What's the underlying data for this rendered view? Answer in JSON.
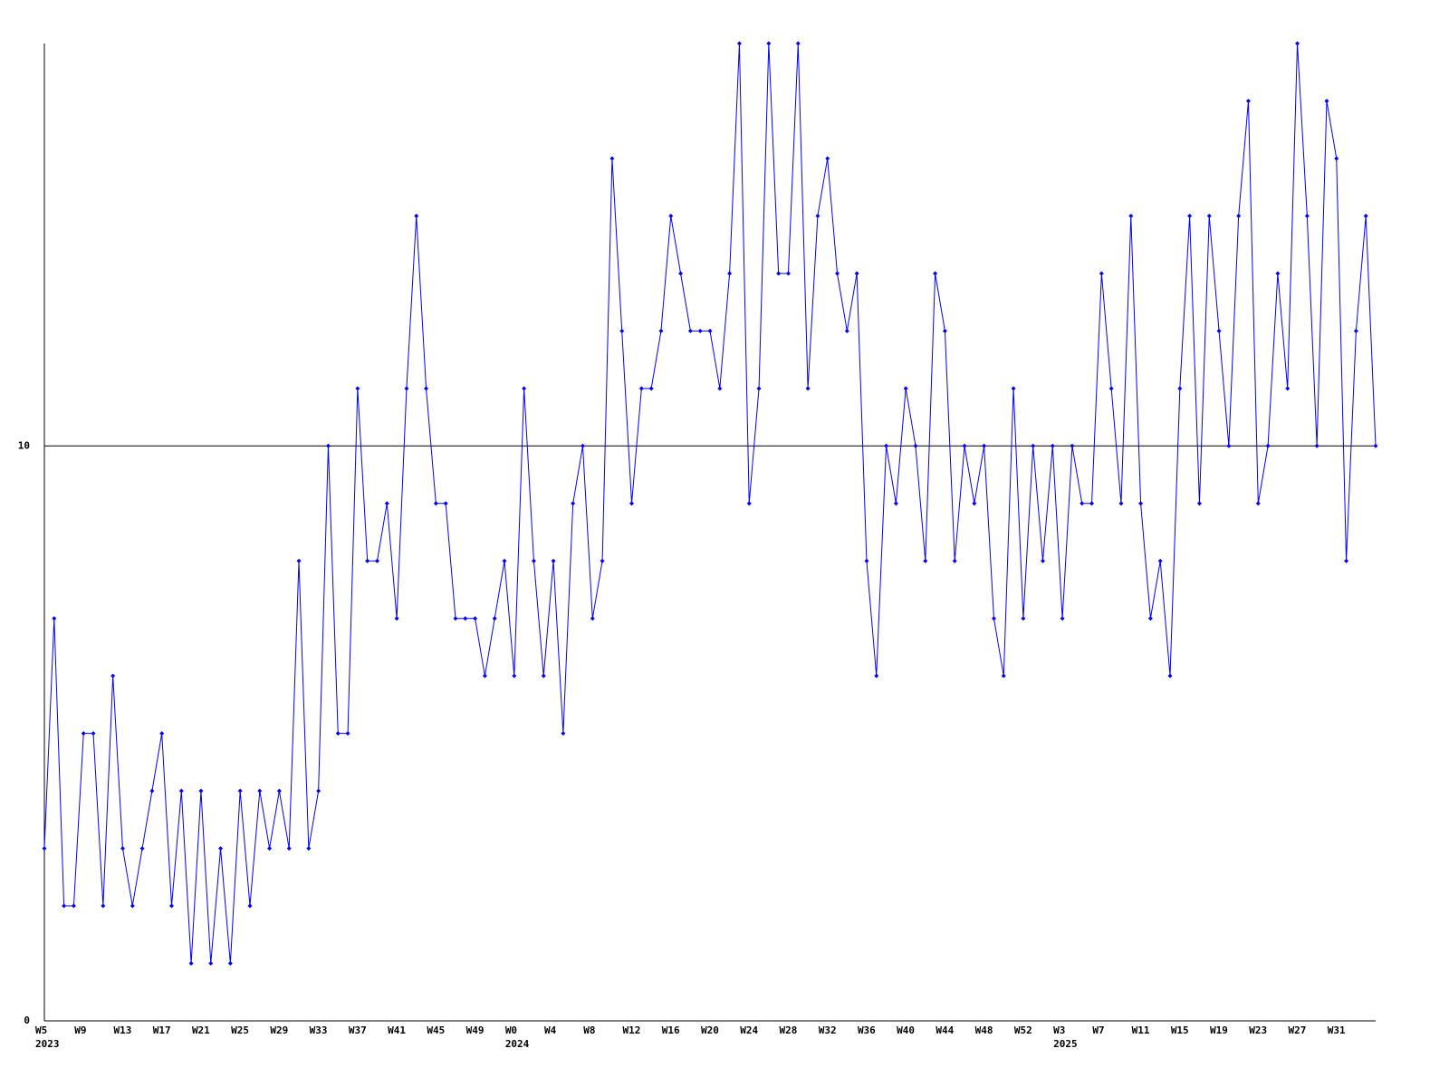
{
  "chart_data": {
    "type": "line",
    "categories": [
      "W5",
      null,
      null,
      null,
      "W9",
      null,
      null,
      null,
      "W13",
      null,
      null,
      null,
      "W17",
      null,
      null,
      null,
      "W21",
      null,
      null,
      null,
      "W25",
      null,
      null,
      null,
      "W29",
      null,
      null,
      null,
      "W33",
      null,
      null,
      null,
      "W37",
      null,
      null,
      null,
      "W41",
      null,
      null,
      null,
      "W45",
      null,
      null,
      null,
      "W49",
      null,
      null,
      null,
      "W0",
      null,
      null,
      null,
      "W4",
      null,
      null,
      null,
      "W8",
      null,
      null,
      null,
      "W12",
      null,
      null,
      null,
      "W16",
      null,
      null,
      null,
      "W20",
      null,
      null,
      null,
      "W24",
      null,
      null,
      null,
      "W28",
      null,
      null,
      null,
      "W32",
      null,
      null,
      null,
      "W36",
      null,
      null,
      null,
      "W40",
      null,
      null,
      null,
      "W44",
      null,
      null,
      null,
      "W48",
      null,
      null,
      null,
      "W52",
      null,
      null,
      null,
      "W3",
      null,
      null,
      null,
      "W7",
      null,
      null,
      null,
      "W11",
      null,
      null,
      null,
      "W15",
      null,
      null,
      null,
      "W19",
      null,
      null,
      null,
      "W23",
      null,
      null,
      null,
      "W27",
      null,
      null,
      null,
      "W31",
      null,
      null,
      null,
      null
    ],
    "years": [
      "2023",
      null,
      null,
      null,
      null,
      null,
      null,
      null,
      null,
      null,
      null,
      null,
      null,
      null,
      null,
      null,
      null,
      null,
      null,
      null,
      null,
      null,
      null,
      null,
      null,
      null,
      null,
      null,
      null,
      null,
      null,
      null,
      null,
      null,
      null,
      null,
      null,
      null,
      null,
      null,
      null,
      null,
      null,
      null,
      null,
      null,
      null,
      null,
      "2024",
      null,
      null,
      null,
      null,
      null,
      null,
      null,
      null,
      null,
      null,
      null,
      null,
      null,
      null,
      null,
      null,
      null,
      null,
      null,
      null,
      null,
      null,
      null,
      null,
      null,
      null,
      null,
      null,
      null,
      null,
      null,
      null,
      null,
      null,
      null,
      null,
      null,
      null,
      null,
      null,
      null,
      null,
      null,
      null,
      null,
      null,
      null,
      null,
      null,
      null,
      null,
      null,
      null,
      null,
      null,
      "2025",
      null,
      null,
      null,
      null,
      null,
      null,
      null,
      null,
      null,
      null,
      null,
      null,
      null,
      null,
      null,
      null,
      null,
      null,
      null,
      null,
      null,
      null,
      null,
      null,
      null,
      null,
      null,
      null,
      null,
      null,
      null,
      null
    ],
    "series": [
      {
        "color": "#0000ff",
        "values": [
          3,
          7,
          2,
          2,
          5,
          5,
          2,
          6,
          3,
          2,
          3,
          4,
          5,
          2,
          4,
          1,
          4,
          1,
          3,
          1,
          4,
          2,
          4,
          3,
          4,
          3,
          8,
          3,
          4,
          10,
          5,
          5,
          11,
          8,
          8,
          9,
          7,
          11,
          14,
          11,
          9,
          9,
          7,
          7,
          7,
          6,
          7,
          8,
          6,
          11,
          8,
          6,
          8,
          5,
          9,
          10,
          7,
          8,
          15,
          12,
          9,
          11,
          11,
          12,
          14,
          13,
          12,
          12,
          12,
          11,
          13,
          17,
          9,
          11,
          17,
          13,
          13,
          17,
          11,
          14,
          15,
          13,
          12,
          13,
          8,
          6,
          10,
          9,
          11,
          10,
          8,
          13,
          12,
          8,
          10,
          9,
          10,
          7,
          6,
          11,
          7,
          10,
          8,
          10,
          7,
          10,
          9,
          9,
          13,
          11,
          9,
          14,
          9,
          7,
          8,
          6,
          11,
          14,
          9,
          14,
          12,
          10,
          14,
          16,
          9,
          10,
          13,
          11,
          17,
          14,
          10,
          16,
          15,
          8,
          12,
          14,
          10
        ]
      }
    ],
    "ylim": [
      0,
      17
    ],
    "yticks": [
      0,
      10
    ],
    "grid": true
  }
}
